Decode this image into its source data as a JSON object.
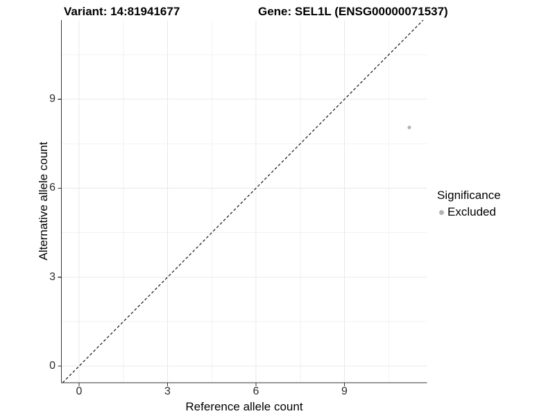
{
  "chart_data": {
    "type": "scatter",
    "titles": {
      "variant": "Variant: 14:81941677",
      "gene": "Gene: SEL1L (ENSG00000071537)"
    },
    "xlabel": "Reference allele count",
    "ylabel": "Alternative allele count",
    "x_ticks": [
      0,
      3,
      6,
      9
    ],
    "y_ticks": [
      0,
      3,
      6,
      9
    ],
    "xlim": [
      -0.6,
      11.8
    ],
    "ylim": [
      -0.56,
      11.67
    ],
    "grid": "major and minor gridlines",
    "legend_position": "right",
    "legend": {
      "title": "Significance",
      "entries": [
        "Excluded"
      ]
    },
    "series": [
      {
        "name": "Excluded",
        "color": "#b3b3b3",
        "points": [
          {
            "x": 11.2,
            "y": 8.05
          }
        ]
      }
    ],
    "reference_line": {
      "type": "identity y=x",
      "style": "dashed",
      "color": "#111111"
    },
    "style": {
      "grid_major_color": "#e8e8e8",
      "grid_minor_color": "#f2f2f2",
      "axis_color": "#333333",
      "tick_color": "#333333",
      "point_radius": 2.6,
      "legend_dot_diameter": 7
    }
  }
}
